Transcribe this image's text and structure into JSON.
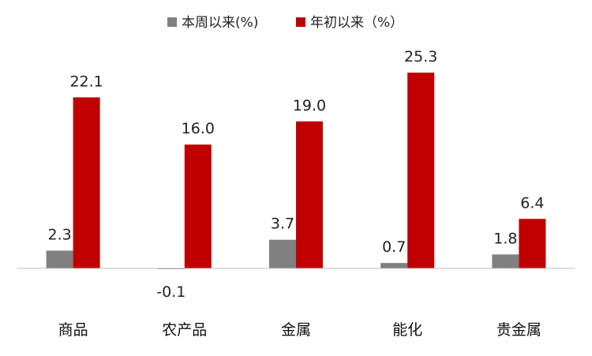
{
  "chart_data": {
    "type": "bar",
    "title": "",
    "xlabel": "",
    "ylabel": "",
    "categories": [
      "商品",
      "农产品",
      "金属",
      "能化",
      "贵金属"
    ],
    "series": [
      {
        "name": "本周以来(%)",
        "color": "#808080",
        "values": [
          2.3,
          -0.1,
          3.7,
          0.7,
          1.8
        ],
        "labels": [
          "2.3",
          "-0.1",
          "3.7",
          "0.7",
          "1.8"
        ]
      },
      {
        "name": "年初以来（%）",
        "color": "#C00000",
        "values": [
          22.1,
          16.0,
          19.0,
          25.3,
          6.4
        ],
        "labels": [
          "22.1",
          "16.0",
          "19.0",
          "25.3",
          "6.4"
        ]
      }
    ],
    "ylim": [
      -1,
      26
    ],
    "grid": false,
    "legend": "top-center"
  }
}
